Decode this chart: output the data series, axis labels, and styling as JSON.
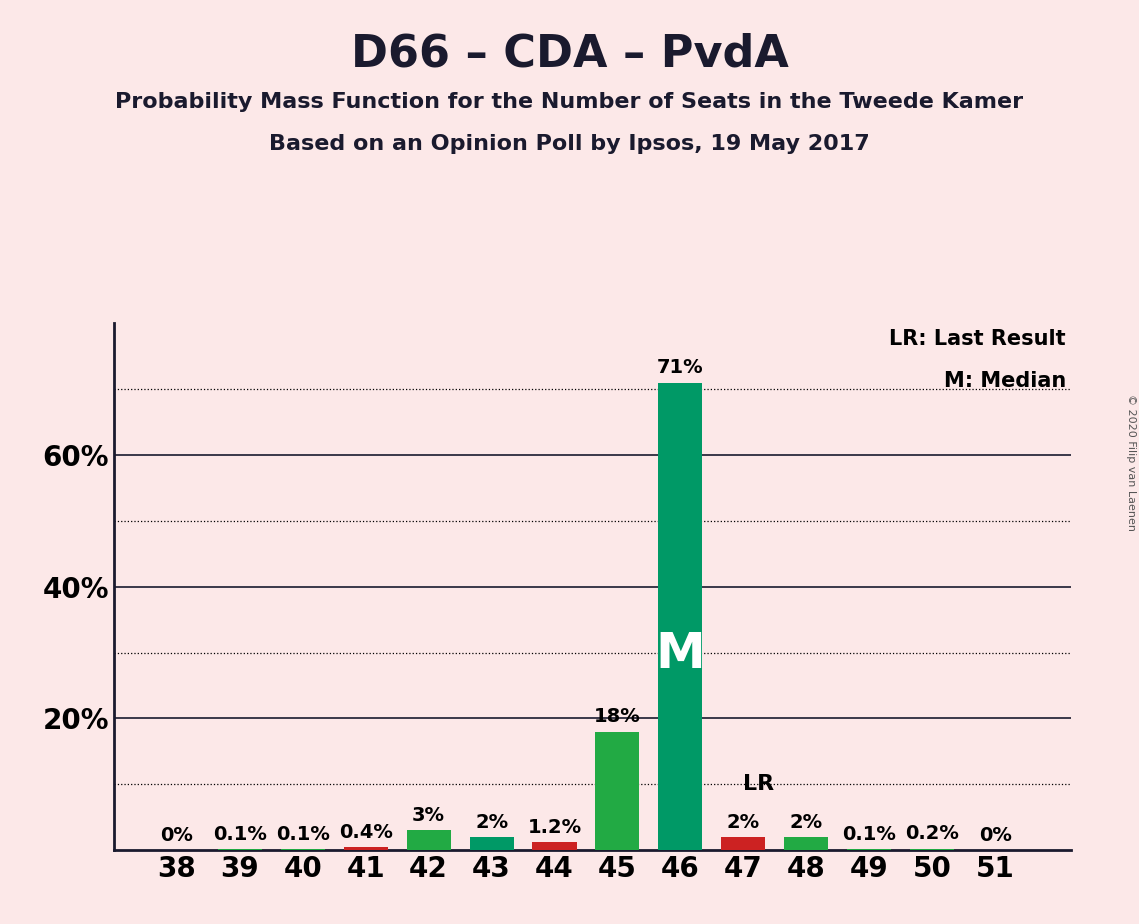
{
  "title": "D66 – CDA – PvdA",
  "subtitle1": "Probability Mass Function for the Number of Seats in the Tweede Kamer",
  "subtitle2": "Based on an Opinion Poll by Ipsos, 19 May 2017",
  "copyright": "© 2020 Filip van Laenen",
  "seats": [
    38,
    39,
    40,
    41,
    42,
    43,
    44,
    45,
    46,
    47,
    48,
    49,
    50,
    51
  ],
  "values": [
    0.0,
    0.1,
    0.1,
    0.4,
    3.0,
    2.0,
    1.2,
    18.0,
    71.0,
    2.0,
    2.0,
    0.1,
    0.2,
    0.0
  ],
  "labels": [
    "0%",
    "0.1%",
    "0.1%",
    "0.4%",
    "3%",
    "2%",
    "1.2%",
    "18%",
    "71%",
    "2%",
    "2%",
    "0.1%",
    "0.2%",
    "0%"
  ],
  "bar_colors": [
    "#22aa44",
    "#22aa44",
    "#22aa44",
    "#cc2222",
    "#22aa44",
    "#009966",
    "#cc2222",
    "#22aa44",
    "#009966",
    "#cc2222",
    "#22aa44",
    "#22aa44",
    "#22aa44",
    "#22aa44"
  ],
  "median_seat": 46,
  "lr_seat": 47,
  "median_label": "M",
  "lr_label": "LR",
  "background_color": "#fce8e8",
  "ylim": [
    0,
    80
  ],
  "solid_yticks": [
    20,
    40,
    60
  ],
  "dotted_yticks": [
    10,
    30,
    50,
    70
  ],
  "ytick_labels_pos": [
    20,
    40,
    60
  ],
  "ytick_labels_vals": [
    "20%",
    "40%",
    "60%"
  ],
  "title_fontsize": 32,
  "subtitle_fontsize": 16,
  "label_fontsize": 14,
  "tick_fontsize": 20,
  "legend_text_lr": "LR: Last Result",
  "legend_text_m": "M: Median"
}
